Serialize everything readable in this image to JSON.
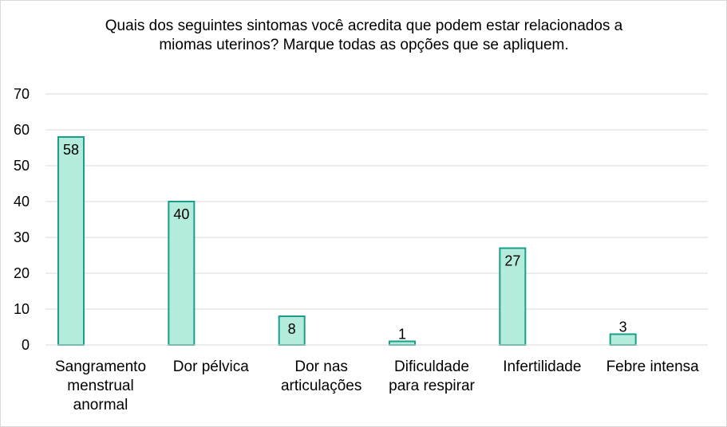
{
  "chart_data": {
    "type": "bar",
    "title": "Quais dos seguintes sintomas você acredita que podem estar relacionados a miomas uterinos? Marque todas as opções que se apliquem.",
    "categories": [
      [
        "Sangramento",
        "menstrual",
        "anormal"
      ],
      [
        "Dor pélvica"
      ],
      [
        "Dor nas",
        "articulações"
      ],
      [
        "Dificuldade",
        "para respirar"
      ],
      [
        "Infertilidade"
      ],
      [
        "Febre intensa"
      ]
    ],
    "values": [
      58,
      40,
      8,
      1,
      27,
      3
    ],
    "ylim": [
      0,
      70
    ],
    "yticks": [
      0,
      10,
      20,
      30,
      40,
      50,
      60,
      70
    ],
    "grid": true,
    "bar_fill": "#b3ecdd",
    "bar_stroke": "#1a9e8a",
    "grid_color": "#d9d9d9"
  }
}
